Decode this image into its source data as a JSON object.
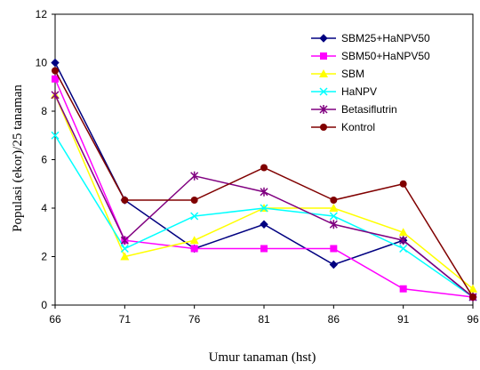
{
  "chart_data": {
    "type": "line",
    "title": "",
    "xlabel": "Umur tanaman (hst)",
    "ylabel": "Populasi (ekor)/25 tanaman",
    "x": [
      66,
      71,
      76,
      81,
      86,
      91,
      96
    ],
    "ylim": [
      0,
      12
    ],
    "yticks": [
      0,
      2,
      4,
      6,
      8,
      10,
      12
    ],
    "grid": false,
    "legend_position": "top-right",
    "series": [
      {
        "name": "SBM25+HaNPV50",
        "color": "#000080",
        "marker": "diamond",
        "values": [
          10.0,
          4.33,
          2.33,
          3.33,
          1.67,
          2.67,
          0.33
        ]
      },
      {
        "name": "SBM50+HaNPV50",
        "color": "#ff00ff",
        "marker": "square",
        "values": [
          9.33,
          2.67,
          2.33,
          2.33,
          2.33,
          0.67,
          0.33
        ]
      },
      {
        "name": "SBM",
        "color": "#ffff00",
        "marker": "triangle",
        "values": [
          8.67,
          2.0,
          2.67,
          4.0,
          4.0,
          3.0,
          0.67
        ]
      },
      {
        "name": "HaNPV",
        "color": "#00ffff",
        "marker": "x",
        "values": [
          7.0,
          2.33,
          3.67,
          4.0,
          3.67,
          2.33,
          0.33
        ]
      },
      {
        "name": "Betasiflutrin",
        "color": "#800080",
        "marker": "star",
        "values": [
          8.67,
          2.67,
          5.33,
          4.67,
          3.33,
          2.67,
          0.33
        ]
      },
      {
        "name": "Kontrol",
        "color": "#800000",
        "marker": "circle",
        "values": [
          9.67,
          4.33,
          4.33,
          5.67,
          4.33,
          5.0,
          0.33
        ]
      }
    ]
  }
}
